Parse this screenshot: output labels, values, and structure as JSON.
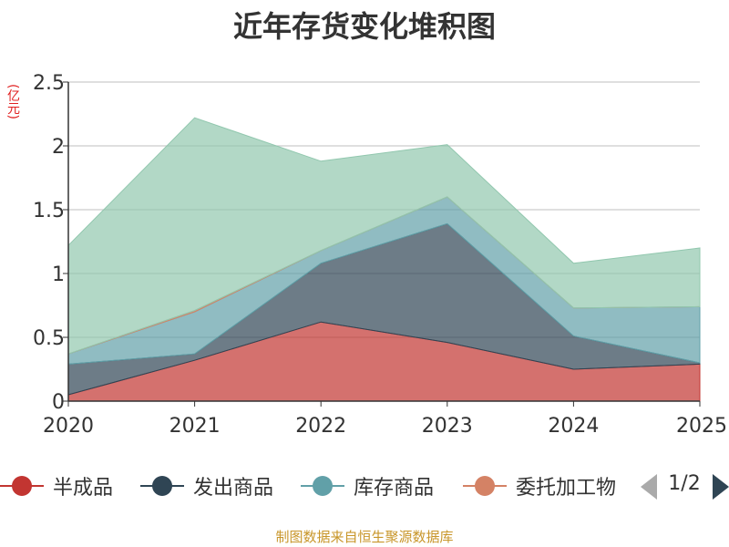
{
  "title": "近年存货变化堆积图",
  "unit_label": "(亿元)",
  "source": "制图数据来自恒生聚源数据库",
  "legend_pager": "1/2",
  "chart_data": {
    "type": "area",
    "stacked": true,
    "title": "近年存货变化堆积图",
    "ylabel": "(亿元)",
    "x": [
      "2020",
      "2021",
      "2022",
      "2023",
      "2024",
      "2025"
    ],
    "ylim": [
      0,
      2.5
    ],
    "yticks": [
      "0",
      "0.5",
      "1",
      "1.5",
      "2",
      "2.5"
    ],
    "grid": true,
    "legend_position": "bottom",
    "series": [
      {
        "name": "半成品",
        "color": "#c23531",
        "values": [
          0.05,
          0.32,
          0.62,
          0.46,
          0.25,
          0.29
        ]
      },
      {
        "name": "发出商品",
        "color": "#2f4554",
        "values": [
          0.24,
          0.05,
          0.46,
          0.93,
          0.26,
          0.01
        ]
      },
      {
        "name": "库存商品",
        "color": "#61a0a8",
        "values": [
          0.08,
          0.33,
          0.1,
          0.21,
          0.22,
          0.44
        ]
      },
      {
        "name": "委托加工物",
        "color": "#d48265",
        "values": [
          0.0,
          0.01,
          0.0,
          0.0,
          0.0,
          0.0
        ]
      },
      {
        "name": "",
        "color": "#91c7ae",
        "values": [
          0.85,
          1.51,
          0.7,
          0.41,
          0.35,
          0.46
        ]
      }
    ]
  }
}
